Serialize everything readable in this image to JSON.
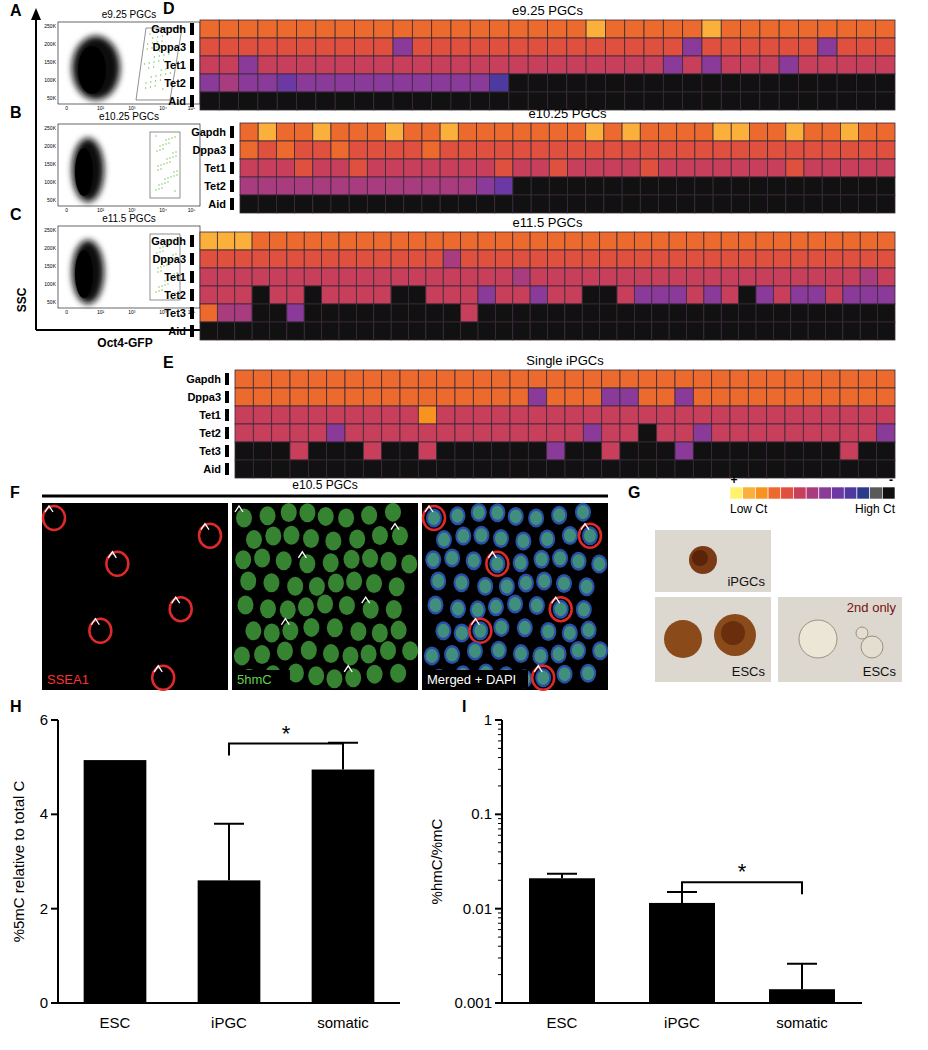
{
  "panel_labels": [
    "A",
    "B",
    "C",
    "D",
    "E",
    "F",
    "G",
    "H",
    "I"
  ],
  "flow": {
    "x_label": "Oct4-GFP",
    "y_label": "SSC",
    "titles": [
      "e9.25 PGCs",
      "e10.25 PGCs",
      "e11.5 PGCs"
    ],
    "y_tick_labels": [
      "250K",
      "200K",
      "150K",
      "100K",
      "50K"
    ],
    "x_tick_labels": [
      "0",
      "10²",
      "10³",
      "10⁴",
      "10⁵"
    ]
  },
  "heatmaps": [
    {
      "title": "e9.25 PGCs",
      "rows": [
        {
          "label": "Gapdh",
          "values": [
            3,
            3,
            3,
            3,
            3,
            3,
            3,
            3,
            3,
            3,
            3,
            3,
            3,
            3,
            3,
            3,
            3,
            3,
            3,
            3,
            1,
            3,
            3,
            3,
            3,
            3,
            1,
            3,
            3,
            3,
            3,
            3,
            3,
            3,
            3,
            3
          ]
        },
        {
          "label": "Dppa3",
          "values": [
            4,
            4,
            4,
            4,
            4,
            4,
            4,
            4,
            4,
            4,
            7,
            4,
            4,
            4,
            4,
            4,
            4,
            4,
            4,
            4,
            4,
            4,
            4,
            4,
            4,
            7,
            4,
            4,
            4,
            4,
            4,
            4,
            7,
            4,
            4,
            4
          ]
        },
        {
          "label": "Tet1",
          "values": [
            5,
            5,
            7,
            5,
            5,
            5,
            5,
            5,
            5,
            5,
            5,
            5,
            5,
            5,
            5,
            5,
            5,
            5,
            5,
            5,
            5,
            5,
            5,
            5,
            7,
            5,
            7,
            5,
            5,
            5,
            7,
            5,
            5,
            5,
            5,
            5
          ]
        },
        {
          "label": "Tet2",
          "values": [
            7,
            6,
            7,
            7,
            8,
            7,
            7,
            7,
            7,
            7,
            7,
            7,
            7,
            7,
            7,
            9,
            12,
            12,
            12,
            12,
            12,
            12,
            12,
            12,
            12,
            12,
            12,
            12,
            12,
            12,
            12,
            12,
            12,
            12,
            12,
            12
          ]
        },
        {
          "label": "Aid",
          "values": [
            12,
            12,
            12,
            12,
            12,
            12,
            12,
            12,
            12,
            12,
            12,
            12,
            12,
            12,
            12,
            12,
            12,
            12,
            12,
            12,
            12,
            12,
            12,
            12,
            12,
            12,
            12,
            12,
            12,
            12,
            12,
            12,
            12,
            12,
            12,
            12
          ]
        }
      ]
    },
    {
      "title": "e10.25 PGCs",
      "rows": [
        {
          "label": "Gapdh",
          "values": [
            3,
            1,
            3,
            3,
            1,
            3,
            3,
            3,
            1,
            3,
            3,
            1,
            3,
            3,
            3,
            3,
            3,
            3,
            3,
            1,
            3,
            1,
            3,
            3,
            3,
            3,
            1,
            1,
            3,
            3,
            1,
            3,
            3,
            1,
            3,
            3
          ]
        },
        {
          "label": "Dppa3",
          "values": [
            3,
            4,
            3,
            4,
            4,
            3,
            4,
            4,
            4,
            4,
            3,
            4,
            4,
            4,
            4,
            4,
            4,
            4,
            4,
            4,
            4,
            4,
            4,
            4,
            4,
            4,
            4,
            4,
            4,
            4,
            4,
            4,
            4,
            4,
            4,
            4
          ]
        },
        {
          "label": "Tet1",
          "values": [
            5,
            5,
            5,
            4,
            5,
            5,
            4,
            5,
            5,
            5,
            5,
            5,
            5,
            5,
            4,
            5,
            5,
            4,
            5,
            5,
            5,
            5,
            4,
            5,
            5,
            5,
            5,
            5,
            5,
            5,
            4,
            5,
            5,
            5,
            5,
            5
          ]
        },
        {
          "label": "Tet2",
          "values": [
            6,
            6,
            6,
            6,
            6,
            6,
            6,
            6,
            6,
            6,
            6,
            6,
            6,
            7,
            8,
            12,
            12,
            12,
            12,
            12,
            12,
            12,
            12,
            12,
            12,
            12,
            12,
            12,
            12,
            12,
            12,
            12,
            12,
            12,
            12,
            12
          ]
        },
        {
          "label": "Aid",
          "values": [
            12,
            12,
            12,
            12,
            12,
            12,
            12,
            12,
            12,
            12,
            12,
            12,
            12,
            12,
            12,
            12,
            12,
            12,
            12,
            12,
            12,
            12,
            12,
            12,
            12,
            12,
            12,
            12,
            12,
            12,
            12,
            12,
            12,
            12,
            12,
            12
          ]
        }
      ]
    },
    {
      "title": "e11.5 PGCs",
      "rows": [
        {
          "label": "Gapdh",
          "values": [
            1,
            1,
            1,
            3,
            3,
            3,
            3,
            3,
            3,
            3,
            3,
            3,
            3,
            3,
            3,
            3,
            3,
            3,
            3,
            3,
            3,
            3,
            3,
            3,
            3,
            3,
            3,
            3,
            3,
            3,
            3,
            3,
            3,
            3,
            3,
            3,
            3,
            3,
            3,
            3
          ]
        },
        {
          "label": "Dppa3",
          "values": [
            4,
            4,
            4,
            4,
            4,
            4,
            4,
            4,
            4,
            4,
            4,
            4,
            4,
            4,
            6,
            4,
            4,
            4,
            4,
            4,
            4,
            4,
            4,
            4,
            4,
            4,
            4,
            4,
            4,
            4,
            4,
            4,
            4,
            4,
            4,
            4,
            4,
            4,
            4,
            4
          ]
        },
        {
          "label": "Tet1",
          "values": [
            5,
            5,
            5,
            5,
            5,
            5,
            5,
            5,
            5,
            5,
            5,
            5,
            5,
            5,
            5,
            5,
            5,
            5,
            6,
            5,
            5,
            5,
            5,
            5,
            5,
            5,
            5,
            5,
            5,
            5,
            5,
            5,
            5,
            5,
            5,
            5,
            5,
            5,
            6,
            5
          ]
        },
        {
          "label": "Tet2",
          "values": [
            5,
            5,
            5,
            12,
            5,
            5,
            12,
            5,
            5,
            5,
            5,
            12,
            12,
            5,
            5,
            5,
            7,
            5,
            5,
            7,
            5,
            5,
            12,
            12,
            5,
            7,
            7,
            7,
            5,
            7,
            5,
            12,
            7,
            5,
            7,
            7,
            5,
            7,
            7,
            7
          ]
        },
        {
          "label": "Tet3",
          "values": [
            3,
            6,
            6,
            12,
            12,
            7,
            12,
            12,
            12,
            12,
            12,
            12,
            12,
            12,
            12,
            5,
            12,
            12,
            12,
            12,
            12,
            12,
            12,
            12,
            12,
            12,
            12,
            12,
            12,
            12,
            12,
            12,
            12,
            12,
            12,
            12,
            12,
            12,
            12,
            12
          ]
        },
        {
          "label": "Aid",
          "values": [
            12,
            12,
            12,
            12,
            12,
            12,
            12,
            12,
            12,
            12,
            12,
            12,
            12,
            12,
            12,
            12,
            12,
            12,
            12,
            12,
            12,
            12,
            12,
            12,
            12,
            12,
            12,
            12,
            12,
            12,
            12,
            12,
            12,
            12,
            12,
            12,
            12,
            12,
            12,
            12
          ]
        }
      ]
    },
    {
      "title": "Single iPGCs",
      "rows": [
        {
          "label": "Gapdh",
          "values": [
            3,
            3,
            3,
            3,
            3,
            3,
            3,
            3,
            3,
            3,
            3,
            3,
            3,
            3,
            3,
            3,
            3,
            3,
            3,
            3,
            3,
            3,
            3,
            3,
            3,
            3,
            3,
            3,
            3,
            3,
            3,
            3,
            3,
            3,
            3,
            3
          ]
        },
        {
          "label": "Dppa3",
          "values": [
            3,
            3,
            3,
            3,
            3,
            3,
            3,
            3,
            3,
            3,
            3,
            3,
            3,
            3,
            3,
            3,
            7,
            3,
            3,
            3,
            7,
            7,
            3,
            3,
            7,
            3,
            3,
            3,
            3,
            3,
            3,
            3,
            3,
            3,
            3,
            3
          ]
        },
        {
          "label": "Tet1",
          "values": [
            5,
            5,
            5,
            5,
            5,
            5,
            5,
            5,
            5,
            5,
            2,
            5,
            5,
            5,
            5,
            5,
            5,
            5,
            5,
            5,
            5,
            5,
            5,
            5,
            5,
            5,
            5,
            5,
            5,
            5,
            5,
            5,
            5,
            5,
            5,
            5
          ]
        },
        {
          "label": "Tet2",
          "values": [
            5,
            5,
            5,
            5,
            5,
            7,
            5,
            5,
            5,
            5,
            5,
            5,
            5,
            5,
            5,
            5,
            5,
            5,
            5,
            7,
            5,
            5,
            12,
            5,
            5,
            7,
            5,
            5,
            5,
            5,
            5,
            5,
            5,
            5,
            5,
            7
          ]
        },
        {
          "label": "Tet3",
          "values": [
            12,
            12,
            12,
            5,
            12,
            12,
            12,
            5,
            12,
            12,
            5,
            12,
            12,
            12,
            12,
            12,
            12,
            7,
            12,
            12,
            5,
            12,
            12,
            12,
            7,
            12,
            12,
            12,
            12,
            12,
            12,
            12,
            12,
            5,
            12,
            12
          ]
        },
        {
          "label": "Aid",
          "values": [
            12,
            12,
            12,
            12,
            12,
            12,
            12,
            12,
            12,
            12,
            12,
            12,
            12,
            12,
            12,
            12,
            12,
            12,
            12,
            12,
            12,
            12,
            12,
            12,
            12,
            12,
            12,
            12,
            12,
            12,
            12,
            12,
            12,
            12,
            12,
            12
          ]
        }
      ]
    }
  ],
  "heatmap_scale": {
    "colors": [
      "#fff36b",
      "#fbb03b",
      "#f7931e",
      "#ec6a2e",
      "#e0503f",
      "#c83f5c",
      "#a83c7e",
      "#8a3a98",
      "#6c38a4",
      "#4c3aa0",
      "#2c3a8c",
      "#5a5a5a",
      "#111111"
    ],
    "high_label": "+",
    "low_label": "-",
    "left_text": "Low Ct",
    "right_text": "High Ct"
  },
  "images": {
    "F": {
      "title": "e10.5 PGCs",
      "channels": [
        "SSEA1",
        "5hmC",
        "Merged + DAPI"
      ]
    },
    "G": {
      "panels": [
        {
          "label": "iPGCs"
        },
        {
          "label": "ESCs"
        },
        {
          "label": "ESCs",
          "note": "2nd only"
        }
      ]
    }
  },
  "chart_data": [
    {
      "type": "bar",
      "categories": [
        "ESC",
        "iPGC",
        "somatic"
      ],
      "values": [
        5.15,
        2.6,
        4.95
      ],
      "errors": [
        null,
        1.2,
        0.57
      ],
      "color": "#000000",
      "ylabel": "%5mC relative to total C",
      "ylim": [
        0,
        6
      ],
      "yticks": [
        0,
        2,
        4,
        6
      ],
      "grid": false,
      "annotations": [
        {
          "from": 1,
          "to": 2,
          "value": 5.5,
          "label": "*"
        }
      ]
    },
    {
      "type": "bar",
      "categories": [
        "ESC",
        "iPGC",
        "somatic"
      ],
      "values": [
        0.021,
        0.0115,
        0.0014
      ],
      "errors": [
        0.0025,
        0.0035,
        0.0012
      ],
      "color": "#000000",
      "ylabel": "%hmC/%mC",
      "log": "y",
      "ylim": [
        0.001,
        1
      ],
      "yticks": [
        0.001,
        0.01,
        0.1,
        1
      ],
      "grid": false,
      "annotations": [
        {
          "from": 1,
          "to": 2,
          "value": 0.019,
          "label": "*"
        }
      ]
    }
  ]
}
